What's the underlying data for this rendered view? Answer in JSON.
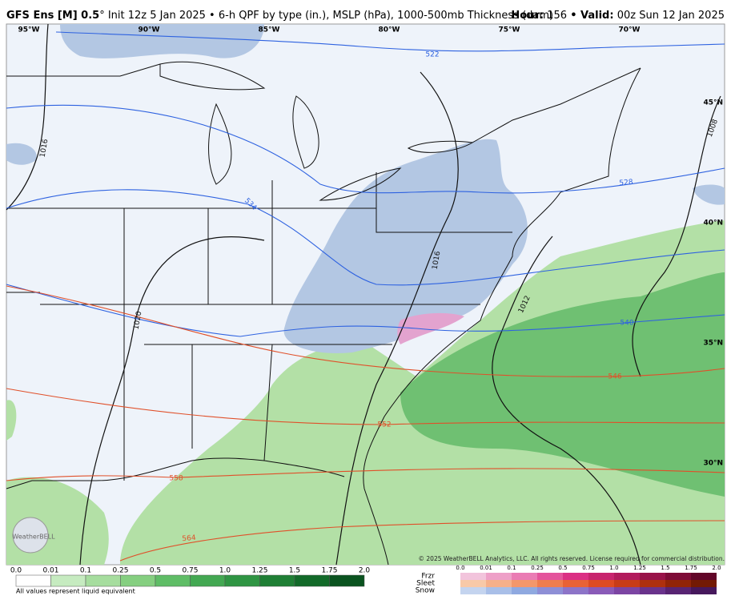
{
  "header": {
    "model": "GFS Ens [M] 0.5",
    "description": "° Init 12z 5 Jan 2025 • 6-h QPF by type (in.), MSLP (hPa), 1000-500mb Thickness (dam)",
    "hour_label": "Hour:",
    "hour": "156",
    "valid_label": "• Valid:",
    "valid": "00z Sun 12 Jan 2025"
  },
  "map": {
    "lon_labels": [
      "95°W",
      "90°W",
      "85°W",
      "80°W",
      "75°W",
      "70°W"
    ],
    "lat_labels": [
      "45°N",
      "40°N",
      "35°N",
      "30°N"
    ],
    "isobar_labels": [
      "1016",
      "1020",
      "1016",
      "1012",
      "1008"
    ],
    "thickness_labels": [
      "522",
      "534",
      "528",
      "540",
      "546",
      "552",
      "558",
      "564"
    ],
    "logo": "WeatherBELL",
    "copyright": "© 2025 WeatherBELL Analytics, LLC. All rights reserved. License required for commercial distribution."
  },
  "legend": {
    "rain_ticks": [
      "0.0",
      "0.01",
      "0.1",
      "0.25",
      "0.5",
      "0.75",
      "1.0",
      "1.25",
      "1.5",
      "1.75",
      "2.0"
    ],
    "footnote": "All values represent liquid equivalent",
    "types": [
      "Frzr",
      "Sleet",
      "Snow"
    ],
    "type_ticks": [
      "0.0",
      "0.01",
      "0.1",
      "0.25",
      "0.5",
      "0.75",
      "1.0",
      "1.25",
      "1.5",
      "1.75",
      "2.0"
    ]
  }
}
